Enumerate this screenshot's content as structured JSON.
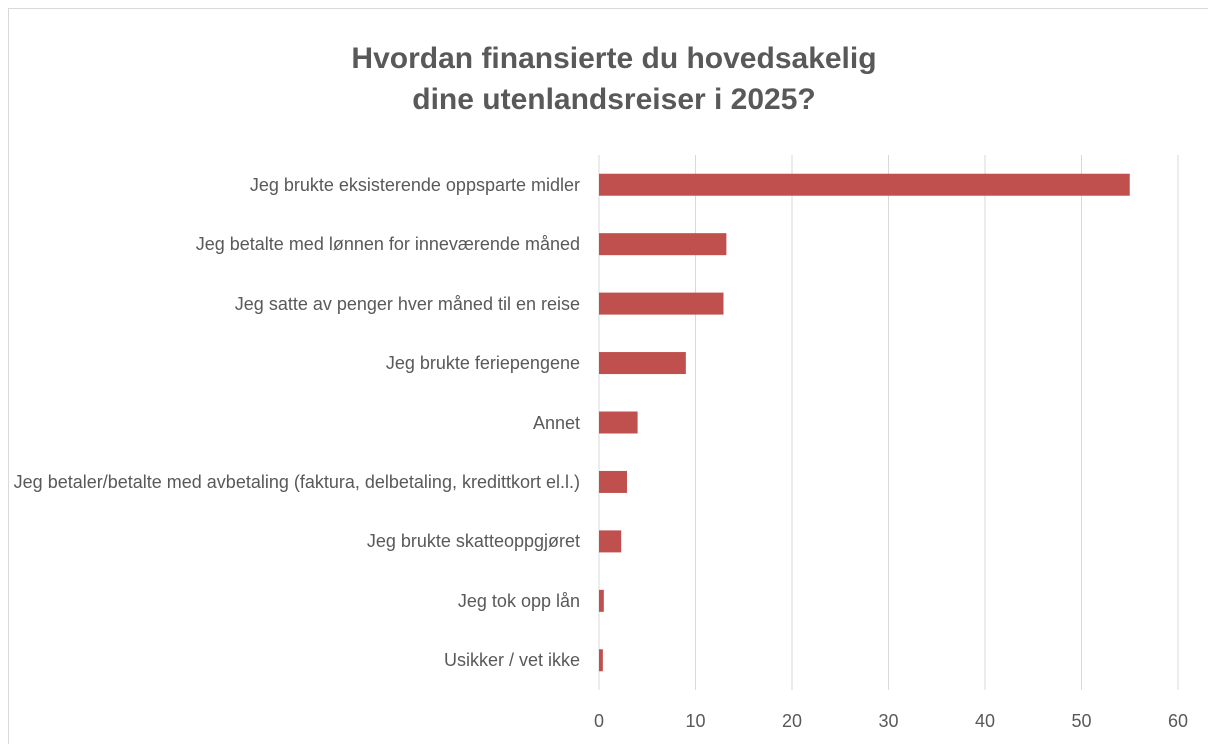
{
  "chart_data": {
    "type": "bar",
    "orientation": "horizontal",
    "title": [
      "Hvordan finansierte du hovedsakelig",
      "dine utenlandsreiser i 2025?"
    ],
    "categories": [
      "Jeg brukte eksisterende oppsparte midler",
      "Jeg betalte med lønnen for inneværende måned",
      "Jeg satte av penger hver måned til en reise",
      "Jeg brukte feriepengene",
      "Annet",
      "Jeg betaler/betalte med avbetaling (faktura, delbetaling, kredittkort el.l.)",
      "Jeg brukte skatteoppgjøret",
      "Jeg tok opp lån",
      "Usikker / vet ikke"
    ],
    "values": [
      55.0,
      13.2,
      12.9,
      9.0,
      4.0,
      2.9,
      2.3,
      0.5,
      0.4
    ],
    "color": "#c0504d",
    "xlim": [
      0,
      60
    ],
    "xticks": [
      0,
      10,
      20,
      30,
      40,
      50,
      60
    ],
    "grid": true
  }
}
